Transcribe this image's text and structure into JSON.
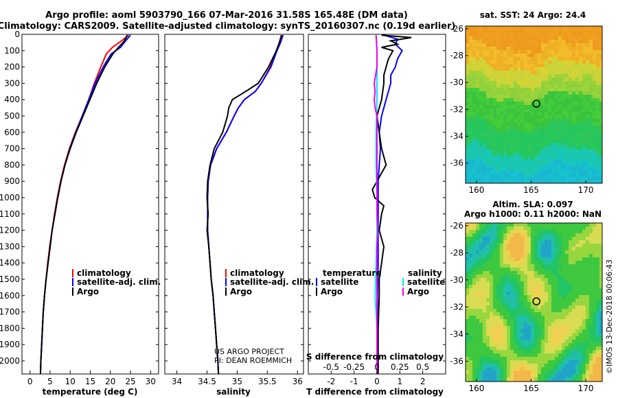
{
  "figure": {
    "title_line1": "Argo profile: aoml 5903790_166 07-Mar-2016 31.58S 165.48E (DM data)",
    "title_line2": "Climatology: CARS2009. Satellite-adjusted climatology: synTS_20160307.nc (0.19d earlier)",
    "credit_line1": "US ARGO PROJECT",
    "credit_line2": "PI: DEAN ROEMMICH",
    "watermark": "©IMOS 13-Dec-2018 00:06:43"
  },
  "colors": {
    "climatology": "#ff0000",
    "satellite": "#0000ff",
    "argo": "#000000",
    "sat_salinity": "#00e5ee",
    "argo_salinity": "#ee00ee"
  },
  "chart_data": [
    {
      "type": "line",
      "name": "temperature",
      "xlabel": "temperature (deg C)",
      "ylabel": "",
      "xlim": [
        -2,
        32
      ],
      "ylim": [
        2080,
        0
      ],
      "xticks": [
        0,
        5,
        10,
        15,
        20,
        25,
        30
      ],
      "yticks": [
        0,
        100,
        200,
        300,
        400,
        500,
        600,
        700,
        800,
        900,
        1000,
        1100,
        1200,
        1300,
        1400,
        1500,
        1600,
        1700,
        1800,
        1900,
        2000
      ],
      "legend": [
        "climatology",
        "satellite-adj. clim.",
        "Argo"
      ],
      "legend_position": "lower-middle",
      "series": [
        {
          "name": "climatology",
          "color": "#ff0000",
          "y": [
            5,
            40,
            80,
            120,
            200,
            300,
            400,
            500,
            600,
            700,
            800,
            900,
            1000,
            1100,
            1200,
            1300,
            1400,
            1500,
            1600,
            1700,
            1800,
            1900,
            2000,
            2080
          ],
          "x": [
            24.5,
            22.8,
            20.5,
            19.0,
            17.6,
            16.0,
            14.6,
            13.0,
            11.3,
            9.8,
            8.6,
            7.6,
            6.8,
            6.1,
            5.5,
            4.9,
            4.4,
            4.0,
            3.6,
            3.3,
            3.1,
            2.9,
            2.7,
            2.6
          ]
        },
        {
          "name": "satellite-adj. clim.",
          "color": "#0000ff",
          "y": [
            5,
            40,
            80,
            120,
            200,
            300,
            400,
            500,
            600,
            700,
            800,
            900,
            1000,
            1100,
            1200,
            1300,
            1400,
            1500,
            1600,
            1700,
            1800,
            1900,
            2000,
            2080
          ],
          "x": [
            25.0,
            23.8,
            22.5,
            20.2,
            18.2,
            16.2,
            14.6,
            13.0,
            11.4,
            9.9,
            8.7,
            7.7,
            6.9,
            6.2,
            5.5,
            5.0,
            4.5,
            4.0,
            3.6,
            3.3,
            3.1,
            2.9,
            2.7,
            2.6
          ]
        },
        {
          "name": "Argo",
          "color": "#000000",
          "y": [
            5,
            40,
            80,
            120,
            200,
            300,
            400,
            500,
            600,
            700,
            800,
            900,
            1000,
            1100,
            1200,
            1300,
            1400,
            1500,
            1600,
            1700,
            1800,
            1900,
            2000,
            2080
          ],
          "x": [
            24.2,
            23.5,
            22.0,
            20.6,
            18.6,
            16.6,
            14.9,
            13.2,
            11.5,
            10.0,
            8.7,
            7.7,
            6.9,
            6.2,
            5.5,
            5.0,
            4.5,
            4.0,
            3.6,
            3.3,
            3.1,
            2.9,
            2.7,
            2.6
          ]
        }
      ]
    },
    {
      "type": "line",
      "name": "salinity",
      "xlabel": "salinity",
      "ylabel": "",
      "xlim": [
        33.8,
        36.1
      ],
      "ylim": [
        2080,
        0
      ],
      "xticks": [
        34,
        34.5,
        35,
        35.5,
        36
      ],
      "legend": [
        "climatology",
        "satellite-adj. clim.",
        "Argo"
      ],
      "legend_position": "lower-right",
      "series": [
        {
          "name": "climatology",
          "color": "#ff0000",
          "y": [
            5,
            50,
            100,
            200,
            300,
            350,
            400,
            450,
            500,
            600,
            700,
            800,
            900,
            1000,
            1100,
            1200,
            1300,
            1400,
            1500,
            1600,
            1700,
            1800,
            1900,
            2000,
            2080
          ],
          "x": [
            35.73,
            35.7,
            35.65,
            35.55,
            35.4,
            35.3,
            35.12,
            35.02,
            34.95,
            34.82,
            34.66,
            34.56,
            34.52,
            34.51,
            34.51,
            34.51,
            34.53,
            34.55,
            34.57,
            34.6,
            34.62,
            34.64,
            34.66,
            34.68,
            34.69
          ]
        },
        {
          "name": "satellite-adj. clim.",
          "color": "#0000ff",
          "y": [
            5,
            50,
            100,
            200,
            300,
            350,
            400,
            450,
            500,
            600,
            700,
            800,
            900,
            1000,
            1100,
            1200,
            1300,
            1400,
            1500,
            1600,
            1700,
            1800,
            1900,
            2000,
            2080
          ],
          "x": [
            35.76,
            35.72,
            35.66,
            35.56,
            35.4,
            35.3,
            35.12,
            35.02,
            34.95,
            34.82,
            34.66,
            34.56,
            34.52,
            34.51,
            34.51,
            34.51,
            34.53,
            34.55,
            34.57,
            34.6,
            34.62,
            34.64,
            34.66,
            34.68,
            34.69
          ]
        },
        {
          "name": "Argo",
          "color": "#000000",
          "y": [
            5,
            50,
            100,
            200,
            300,
            350,
            400,
            450,
            500,
            600,
            700,
            800,
            900,
            1000,
            1100,
            1200,
            1300,
            1400,
            1500,
            1600,
            1700,
            1800,
            1900,
            2000,
            2080
          ],
          "x": [
            35.74,
            35.7,
            35.65,
            35.52,
            35.35,
            35.14,
            34.92,
            34.86,
            34.84,
            34.76,
            34.62,
            34.55,
            34.51,
            34.5,
            34.52,
            34.5,
            34.53,
            34.55,
            34.57,
            34.6,
            34.62,
            34.64,
            34.66,
            34.68,
            34.69
          ]
        }
      ]
    },
    {
      "type": "line",
      "name": "difference",
      "xlabel": "T difference from climatology",
      "top_xlabel": "S difference from climatology",
      "xlim": [
        -3,
        3
      ],
      "top_xlim": [
        -0.75,
        0.75
      ],
      "ylim": [
        2080,
        0
      ],
      "xticks": [
        -2,
        -1,
        0,
        1,
        2
      ],
      "top_xticks": [
        "-0.5",
        "-0.25",
        "0",
        "0.25",
        "0.5"
      ],
      "legend_left_title": "temperature",
      "legend_right_title": "salinity",
      "legend_left": [
        "satellite",
        "Argo"
      ],
      "legend_right": [
        "satellite",
        "Argo"
      ],
      "series": [
        {
          "name": "T satellite",
          "color": "#0000ff",
          "y": [
            5,
            30,
            60,
            100,
            150,
            200,
            250,
            300,
            400,
            500,
            600,
            700,
            800,
            900,
            1000,
            1200,
            1400,
            1600,
            1800,
            2000,
            2080
          ],
          "x": [
            0.3,
            0.9,
            0.8,
            1.1,
            0.9,
            0.8,
            0.6,
            0.6,
            0.4,
            0.2,
            0.1,
            0.15,
            0.1,
            0.05,
            0.05,
            0.05,
            0.05,
            0.02,
            0.02,
            0.02,
            0.02
          ]
        },
        {
          "name": "T Argo",
          "color": "#000000",
          "y": [
            5,
            20,
            40,
            60,
            80,
            100,
            150,
            200,
            250,
            300,
            400,
            500,
            600,
            700,
            800,
            900,
            950,
            1000,
            1050,
            1100,
            1200,
            1300,
            1400,
            1500,
            1600,
            1800,
            2000,
            2080
          ],
          "x": [
            0.2,
            1.5,
            0.6,
            0.9,
            0.2,
            0.7,
            0.5,
            0.4,
            0.3,
            0.3,
            0.2,
            0.0,
            0.1,
            0.2,
            0.4,
            0.0,
            -0.2,
            -0.1,
            0.3,
            0.2,
            0.1,
            0.3,
            0.2,
            0.1,
            0.1,
            0.05,
            0.05,
            0.05
          ]
        },
        {
          "name": "S satellite",
          "color": "#00e5ee",
          "y": [
            5,
            100,
            200,
            400,
            600,
            800,
            1000,
            1200,
            1400,
            1600,
            1800,
            2000,
            2080
          ],
          "x": [
            -0.01,
            0.0,
            0.0,
            0.0,
            -0.01,
            -0.01,
            0.0,
            0.0,
            -0.01,
            -0.02,
            0.0,
            0.0,
            0.0
          ]
        },
        {
          "name": "S Argo",
          "color": "#ee00ee",
          "y": [
            5,
            100,
            200,
            300,
            350,
            400,
            450,
            500,
            550,
            600,
            700,
            800,
            900,
            1000,
            1100,
            1200,
            1300,
            1400,
            1500,
            1600,
            1800,
            2000,
            2080
          ],
          "x": [
            -0.01,
            0.0,
            0.0,
            -0.03,
            -0.02,
            -0.03,
            -0.02,
            0.0,
            0.0,
            0.0,
            0.0,
            0.0,
            0.0,
            0.0,
            0.0,
            0.01,
            0.0,
            0.0,
            0.0,
            0.0,
            0.0,
            0.0,
            0.0
          ]
        }
      ]
    },
    {
      "type": "heatmap",
      "name": "sst_map",
      "title": "sat. SST: 24 Argo: 24.4",
      "xlim": [
        159,
        171.5
      ],
      "ylim": [
        -37.5,
        -25.8
      ],
      "xticks": [
        160,
        165,
        170
      ],
      "yticks": [
        -26,
        -28,
        -30,
        -32,
        -34,
        -36
      ],
      "profile_location": {
        "lon": 165.48,
        "lat": -31.58
      }
    },
    {
      "type": "heatmap",
      "name": "sla_map",
      "title_line1": "Altim. SLA: 0.097",
      "title_line2": "Argo h1000: 0.11 h2000: NaN",
      "xlim": [
        159,
        171.5
      ],
      "ylim": [
        -37.5,
        -25.8
      ],
      "xticks": [
        160,
        165,
        170
      ],
      "yticks": [
        -26,
        -28,
        -30,
        -32,
        -34,
        -36
      ],
      "profile_location": {
        "lon": 165.48,
        "lat": -31.58
      }
    }
  ]
}
